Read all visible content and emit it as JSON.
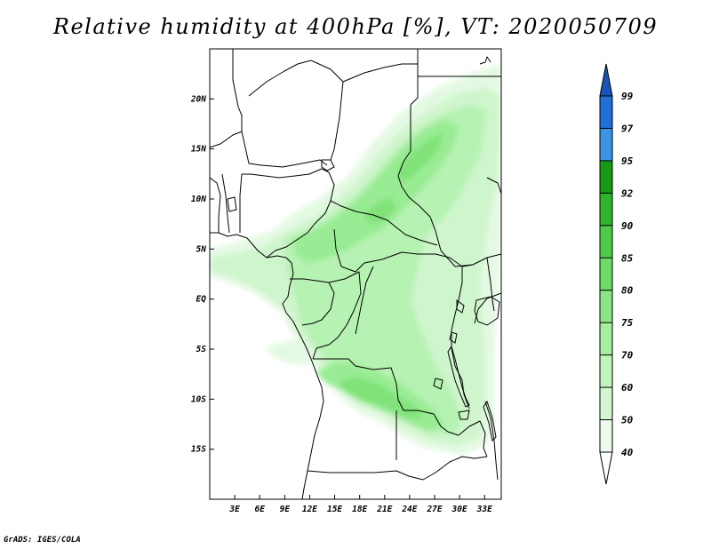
{
  "title": "Relative humidity at 400hPa [%], VT: 2020050709",
  "credit": "GrADS: IGES/COLA",
  "map": {
    "lon_range": [
      0,
      35
    ],
    "lat_range": [
      -20,
      25
    ],
    "lon_ticks": [
      "3E",
      "6E",
      "9E",
      "12E",
      "15E",
      "18E",
      "21E",
      "24E",
      "27E",
      "30E",
      "33E"
    ],
    "lat_ticks": [
      "20N",
      "15N",
      "10N",
      "5N",
      "EQ",
      "5S",
      "10S",
      "15S"
    ]
  },
  "colorbar": {
    "labels": [
      "40",
      "50",
      "60",
      "70",
      "75",
      "80",
      "85",
      "90",
      "92",
      "95",
      "97",
      "99"
    ],
    "colors": [
      "#ffffff",
      "#ecfbeb",
      "#d4f7d2",
      "#bff5bc",
      "#a4f09f",
      "#8ce685",
      "#6ddc66",
      "#4fcb49",
      "#2fb52b",
      "#169a14",
      "#3b93e6",
      "#1f6fd6",
      "#1955b8"
    ]
  }
}
